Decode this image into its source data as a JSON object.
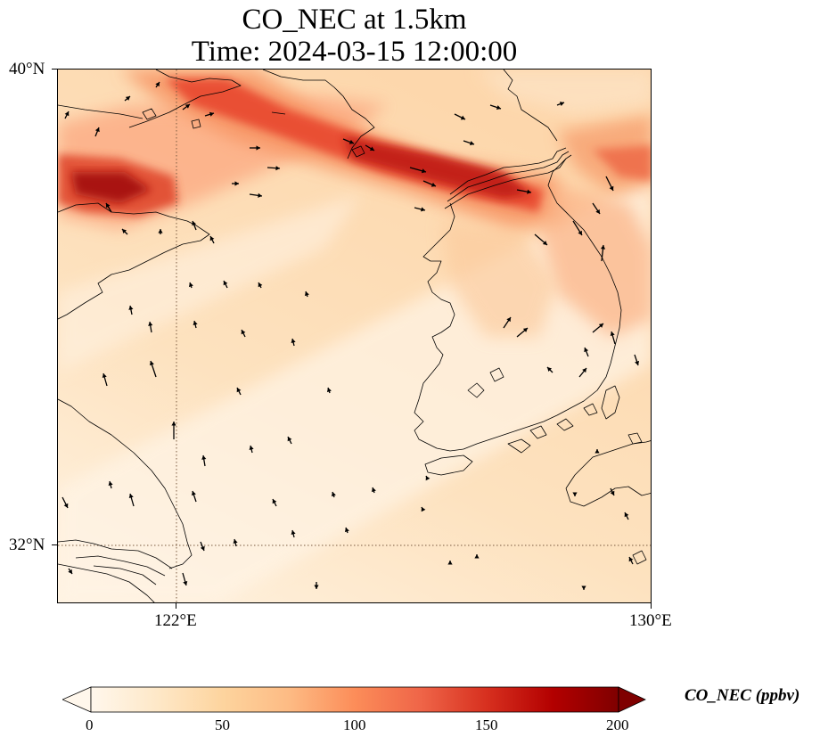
{
  "map": {
    "title_line1": "CO_NEC at 1.5km",
    "title_line2": "Time: 2024-03-15 12:00:00",
    "variable": "CO_NEC",
    "level": "1.5km",
    "time": "2024-03-15 12:00:00",
    "colormap": "OrRd",
    "lat_labels": [
      {
        "value": 40,
        "label": "40°N"
      },
      {
        "value": 32,
        "label": "32°N"
      }
    ],
    "lon_labels": [
      {
        "value": 122,
        "label": "122°E"
      },
      {
        "value": 130,
        "label": "130°E"
      }
    ],
    "extent": {
      "lon_min": 120,
      "lon_max": 130,
      "lat_min": 31,
      "lat_max": 40
    },
    "gridlines": true,
    "coastlines": true,
    "wind_vectors": true
  },
  "colorbar": {
    "label": "CO_NEC (ppbv)",
    "ticks": [
      "0",
      "50",
      "100",
      "150",
      "200"
    ],
    "min": 0,
    "max": 200,
    "extend": "both",
    "colors": [
      "#fff7ec",
      "#fee8c8",
      "#fdd49e",
      "#fdbb84",
      "#fc8d59",
      "#ef6548",
      "#d7301f",
      "#b30000",
      "#7f0000"
    ]
  }
}
